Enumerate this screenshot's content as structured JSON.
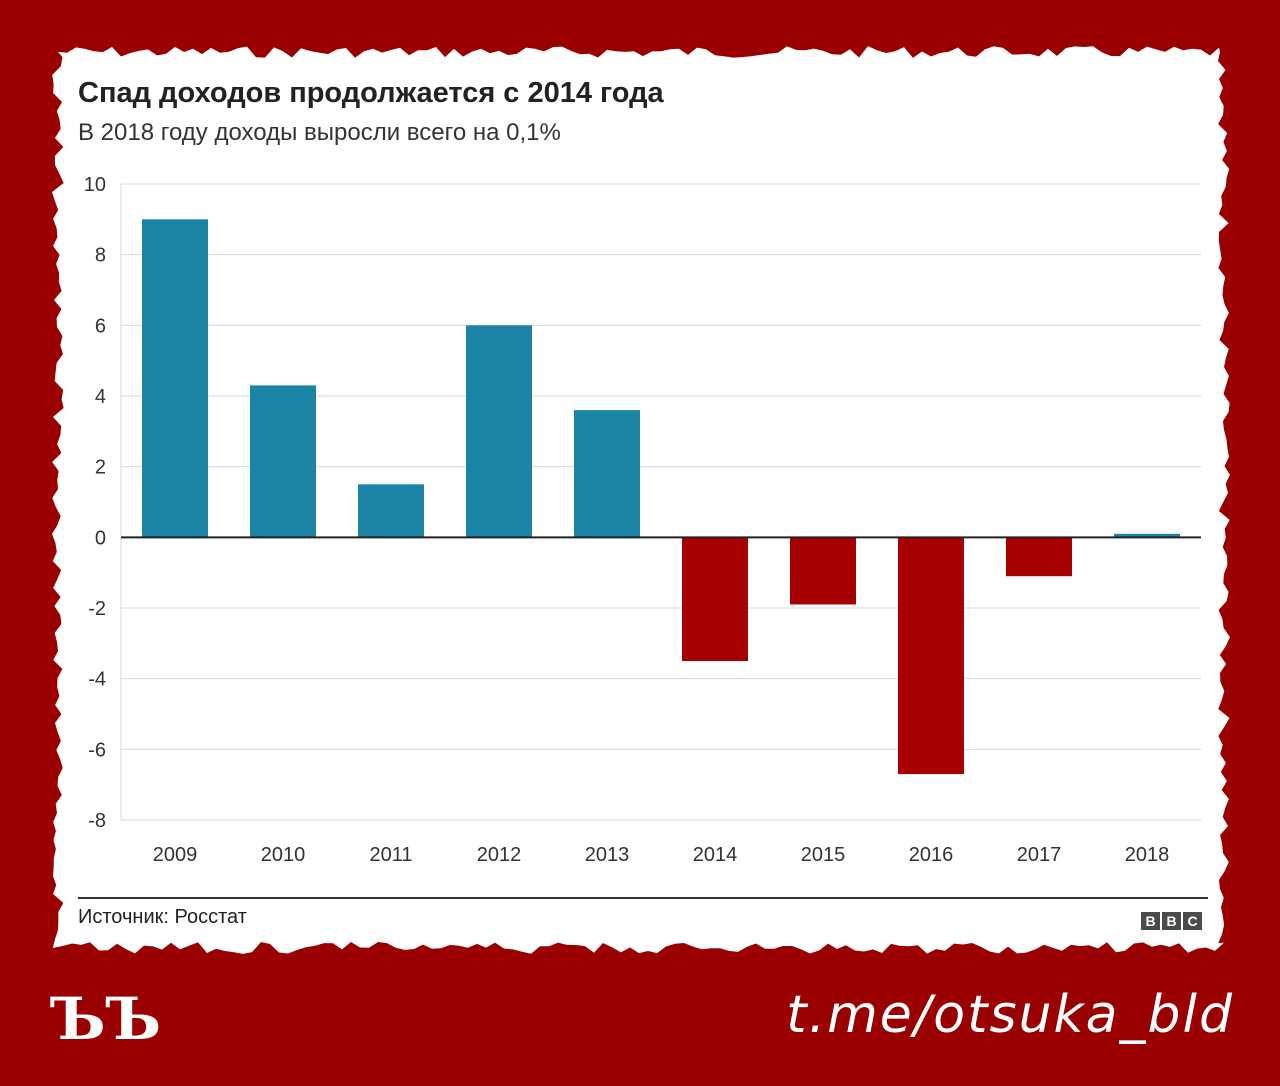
{
  "header": {
    "title": "Спад доходов продолжается с 2014 года",
    "subtitle": "В 2018 году доходы выросли всего на 0,1%"
  },
  "footer": {
    "source": "Источник: Росстат",
    "bbc_letters": [
      "B",
      "B",
      "C"
    ]
  },
  "brand": {
    "logo": "ЪЪ",
    "link": "t.me/otsuka_bld"
  },
  "colors": {
    "positive": "#1b83a6",
    "negative": "#a70000",
    "background": "#9b0000",
    "paper": "#ffffff"
  },
  "chart_data": {
    "type": "bar",
    "categories": [
      "2009",
      "2010",
      "2011",
      "2012",
      "2013",
      "2014",
      "2015",
      "2016",
      "2017",
      "2018"
    ],
    "values": [
      9.0,
      4.3,
      1.5,
      6.0,
      3.6,
      -3.5,
      -1.9,
      -6.7,
      -1.1,
      0.1
    ],
    "ylim": [
      -8,
      10
    ],
    "yticks": [
      10,
      8,
      6,
      4,
      2,
      0,
      -2,
      -4,
      -6,
      -8
    ],
    "grid": true,
    "legend": "none"
  }
}
